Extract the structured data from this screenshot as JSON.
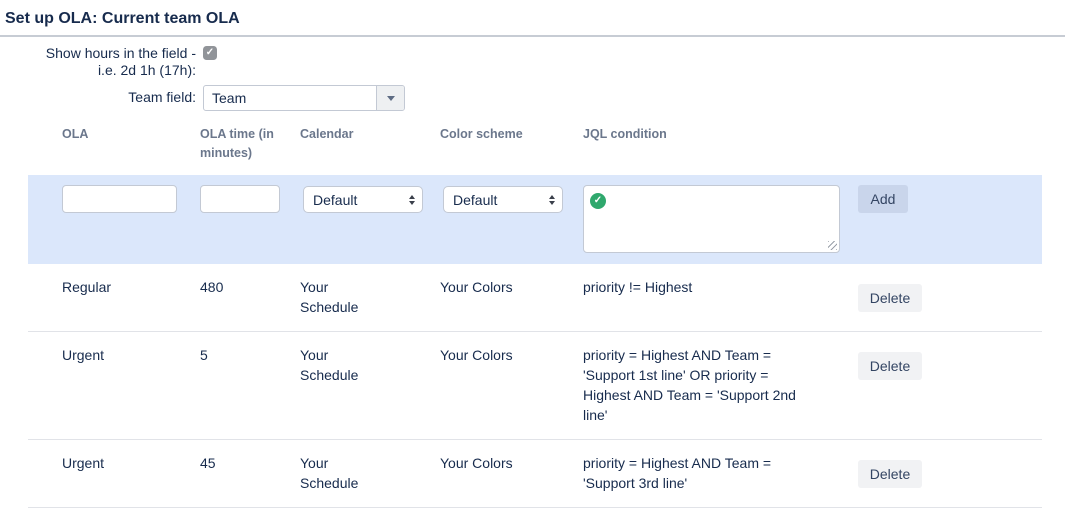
{
  "page": {
    "title": "Set up OLA: Current team OLA"
  },
  "form": {
    "show_hours": {
      "label_line1": "Show hours in the field -",
      "label_line2": "i.e. 2d 1h (17h):",
      "checked": true
    },
    "team_field": {
      "label": "Team field:",
      "value": "Team"
    }
  },
  "table": {
    "headers": {
      "ola": "OLA",
      "time": "OLA time (in minutes)",
      "calendar": "Calendar",
      "color_scheme": "Color scheme",
      "jql": "JQL condition"
    },
    "add_row": {
      "ola_value": "",
      "time_value": "",
      "calendar_value": "Default",
      "color_scheme_value": "Default",
      "jql_value": "",
      "add_label": "Add"
    },
    "rows": [
      {
        "ola": "Regular",
        "time": "480",
        "calendar": "Your Schedule",
        "color_scheme": "Your Colors",
        "jql": "priority != Highest",
        "delete_label": "Delete"
      },
      {
        "ola": "Urgent",
        "time": "5",
        "calendar": "Your Schedule",
        "color_scheme": "Your Colors",
        "jql": "priority = Highest AND Team = 'Support 1st line' OR priority = Highest AND Team = 'Support 2nd line'",
        "delete_label": "Delete"
      },
      {
        "ola": "Urgent",
        "time": "45",
        "calendar": "Your Schedule",
        "color_scheme": "Your Colors",
        "jql": "priority = Highest AND Team = 'Support 3rd line'",
        "delete_label": "Delete"
      }
    ]
  },
  "icons": {
    "jql_valid": "check-circle",
    "drag_handle": "dot-grid",
    "select_stepper": "up-down-arrows",
    "team_dropdown": "chevron-down",
    "show_hours_check": "checkmark"
  },
  "colors": {
    "highlight_row": "#dbe7fb",
    "valid_green": "#2fa86d",
    "text_primary": "#172b4d",
    "header_text": "#6b778c",
    "add_button": "#c9d5eb",
    "delete_button": "#f1f2f4"
  }
}
